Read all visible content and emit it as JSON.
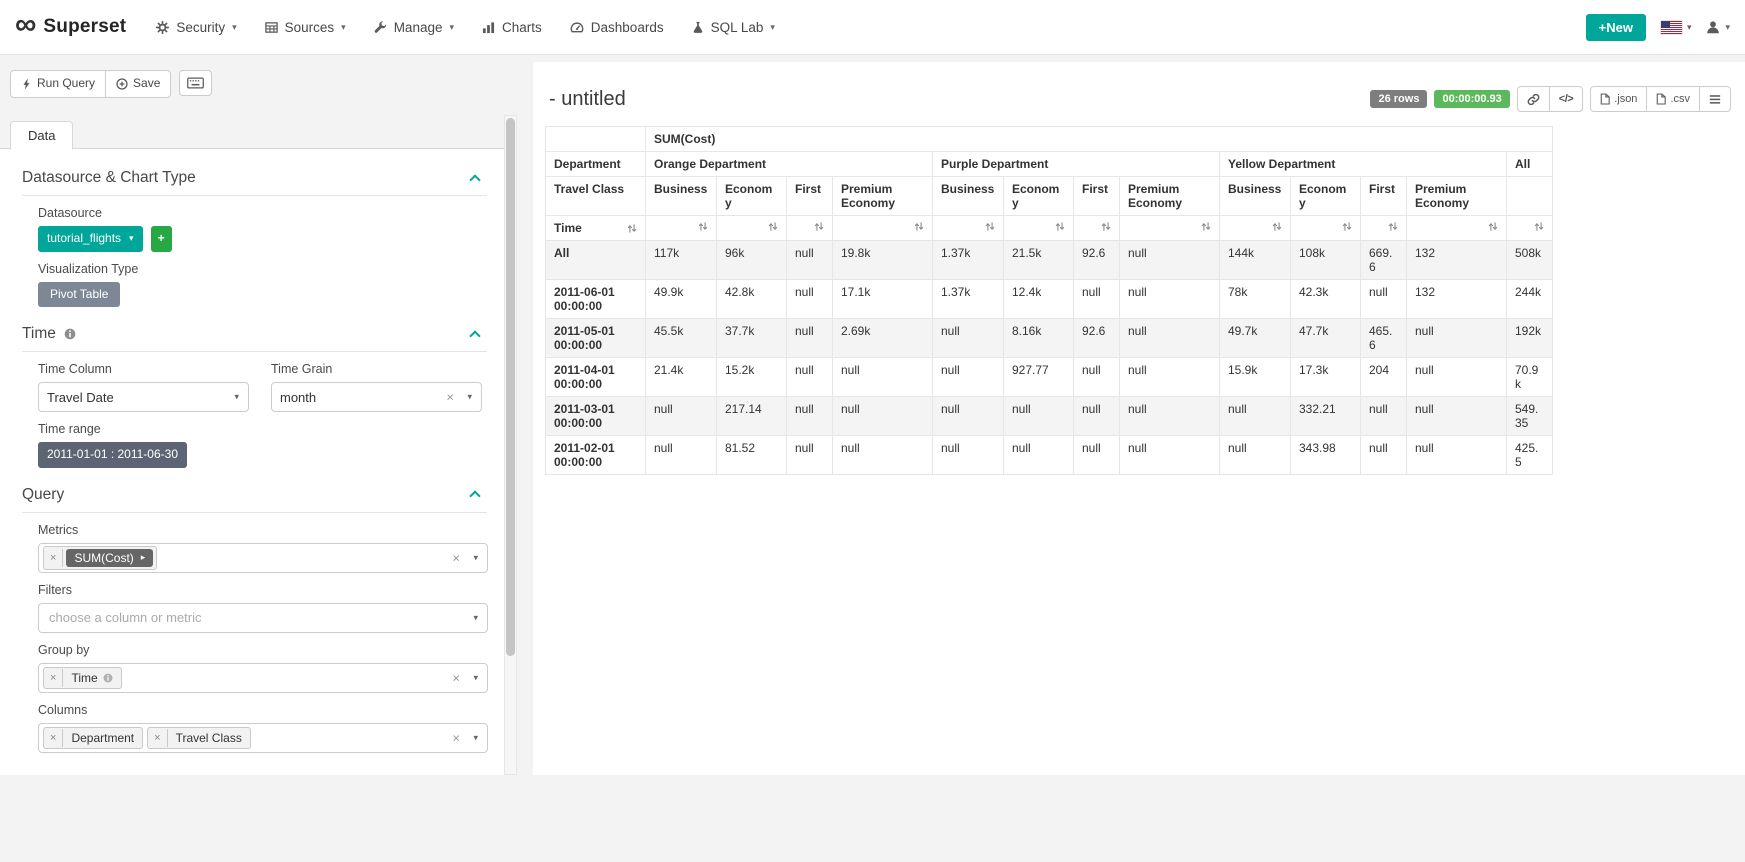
{
  "navbar": {
    "brand": "Superset",
    "items": [
      {
        "label": "Security",
        "icon": "gear-icon",
        "has_caret": true
      },
      {
        "label": "Sources",
        "icon": "table-icon",
        "has_caret": true
      },
      {
        "label": "Manage",
        "icon": "wrench-icon",
        "has_caret": true
      },
      {
        "label": "Charts",
        "icon": "bar-chart-icon",
        "has_caret": false
      },
      {
        "label": "Dashboards",
        "icon": "dashboard-icon",
        "has_caret": false
      },
      {
        "label": "SQL Lab",
        "icon": "flask-icon",
        "has_caret": true
      }
    ],
    "new_button_label": "+New"
  },
  "toolbar": {
    "run_query_label": "Run Query",
    "save_label": "Save"
  },
  "panel": {
    "tab_label": "Data",
    "datasource_section": {
      "title": "Datasource & Chart Type",
      "datasource_label": "Datasource",
      "datasource_value": "tutorial_flights",
      "viz_type_label": "Visualization Type",
      "viz_type_value": "Pivot Table"
    },
    "time_section": {
      "title": "Time",
      "time_column_label": "Time Column",
      "time_column_value": "Travel Date",
      "time_grain_label": "Time Grain",
      "time_grain_value": "month",
      "time_range_label": "Time range",
      "time_range_value": "2011-01-01 : 2011-06-30"
    },
    "query_section": {
      "title": "Query",
      "metrics_label": "Metrics",
      "metrics_token": "SUM(Cost)",
      "filters_label": "Filters",
      "filters_placeholder": "choose a column or metric",
      "groupby_label": "Group by",
      "groupby_tokens": [
        {
          "label": "Time",
          "has_info": true
        }
      ],
      "columns_label": "Columns",
      "columns_tokens": [
        {
          "label": "Department"
        },
        {
          "label": "Travel Class"
        }
      ]
    }
  },
  "chart": {
    "title": "- untitled",
    "rows_badge": "26 rows",
    "duration_badge": "00:00:00.93",
    "export_json_label": ".json",
    "export_csv_label": ".csv"
  },
  "pivot_table": {
    "type": "table",
    "metric_header": "SUM(Cost)",
    "column_axis_label": "Department",
    "column_groups": [
      {
        "label": "Orange Department",
        "span": 4
      },
      {
        "label": "Purple Department",
        "span": 4
      },
      {
        "label": "Yellow Department",
        "span": 4
      },
      {
        "label": "All",
        "span": 1
      }
    ],
    "class_axis_label": "Travel Class",
    "class_headers": [
      "Business",
      "Economy",
      "First",
      "Premium Economy"
    ],
    "row_axis_label": "Time",
    "rows": [
      {
        "label": "All",
        "values": [
          "117k",
          "96k",
          "null",
          "19.8k",
          "1.37k",
          "21.5k",
          "92.6",
          "null",
          "144k",
          "108k",
          "669.6",
          "132",
          "508k"
        ]
      },
      {
        "label": "2011-06-01 00:00:00",
        "values": [
          "49.9k",
          "42.8k",
          "null",
          "17.1k",
          "1.37k",
          "12.4k",
          "null",
          "null",
          "78k",
          "42.3k",
          "null",
          "132",
          "244k"
        ]
      },
      {
        "label": "2011-05-01 00:00:00",
        "values": [
          "45.5k",
          "37.7k",
          "null",
          "2.69k",
          "null",
          "8.16k",
          "92.6",
          "null",
          "49.7k",
          "47.7k",
          "465.6",
          "null",
          "192k"
        ]
      },
      {
        "label": "2011-04-01 00:00:00",
        "values": [
          "21.4k",
          "15.2k",
          "null",
          "null",
          "null",
          "927.77",
          "null",
          "null",
          "15.9k",
          "17.3k",
          "204",
          "null",
          "70.9k"
        ]
      },
      {
        "label": "2011-03-01 00:00:00",
        "values": [
          "null",
          "217.14",
          "null",
          "null",
          "null",
          "null",
          "null",
          "null",
          "null",
          "332.21",
          "null",
          "null",
          "549.35"
        ]
      },
      {
        "label": "2011-02-01 00:00:00",
        "values": [
          "null",
          "81.52",
          "null",
          "null",
          "null",
          "null",
          "null",
          "null",
          "null",
          "343.98",
          "null",
          "null",
          "425.5"
        ]
      }
    ]
  },
  "colors": {
    "accent_teal": "#00a699",
    "success_green": "#5cb85c",
    "badge_gray": "#7e7e7e",
    "viz_pill_slate": "#7d8796",
    "time_range_slate": "#5d6574",
    "metric_pill_gray": "#666666",
    "add_button_green": "#28a745"
  }
}
